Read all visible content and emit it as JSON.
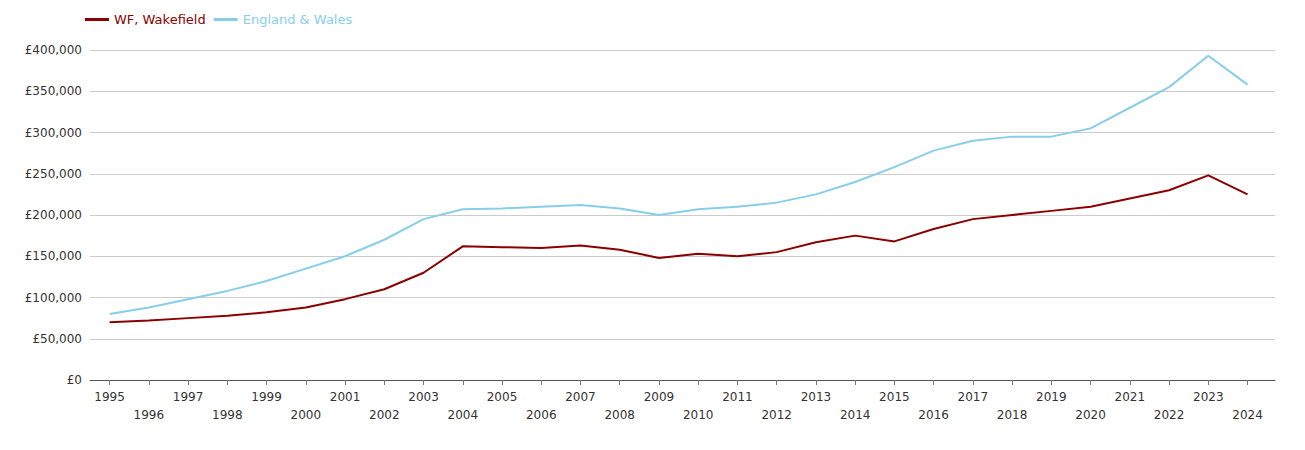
{
  "chart_data": {
    "type": "line",
    "x": [
      1995,
      1996,
      1997,
      1998,
      1999,
      2000,
      2001,
      2002,
      2003,
      2004,
      2005,
      2006,
      2007,
      2008,
      2009,
      2010,
      2011,
      2012,
      2013,
      2014,
      2015,
      2016,
      2017,
      2018,
      2019,
      2020,
      2021,
      2022,
      2023,
      2024
    ],
    "series": [
      {
        "name": "WF, Wakefield",
        "color": "#8b0000",
        "values": [
          70000,
          72000,
          75000,
          78000,
          82000,
          88000,
          98000,
          110000,
          130000,
          162000,
          161000,
          160000,
          163000,
          158000,
          148000,
          153000,
          150000,
          155000,
          167000,
          175000,
          168000,
          183000,
          195000,
          200000,
          205000,
          210000,
          220000,
          230000,
          248000,
          225000
        ]
      },
      {
        "name": "England & Wales",
        "color": "#87CEEB",
        "values": [
          80000,
          88000,
          98000,
          108000,
          120000,
          135000,
          150000,
          170000,
          195000,
          207000,
          208000,
          210000,
          212000,
          208000,
          200000,
          207000,
          210000,
          215000,
          225000,
          240000,
          258000,
          278000,
          290000,
          295000,
          295000,
          305000,
          330000,
          355000,
          393000,
          358000
        ]
      }
    ],
    "xlim": [
      1994.5,
      2024.7
    ],
    "xticks": [
      1995,
      1996,
      1997,
      1998,
      1999,
      2000,
      2001,
      2002,
      2003,
      2004,
      2005,
      2006,
      2007,
      2008,
      2009,
      2010,
      2011,
      2012,
      2013,
      2014,
      2015,
      2016,
      2017,
      2018,
      2019,
      2020,
      2021,
      2022,
      2023,
      2024
    ],
    "ylim": [
      0,
      400000
    ],
    "yticks": [
      {
        "value": 0,
        "label": "£0"
      },
      {
        "value": 50000,
        "label": "£50,000"
      },
      {
        "value": 100000,
        "label": "£100,000"
      },
      {
        "value": 150000,
        "label": "£150,000"
      },
      {
        "value": 200000,
        "label": "£200,000"
      },
      {
        "value": 250000,
        "label": "£250,000"
      },
      {
        "value": 300000,
        "label": "£300,000"
      },
      {
        "value": 350000,
        "label": "£350,000"
      },
      {
        "value": 400000,
        "label": "£400,000"
      }
    ],
    "grid": true,
    "legend": "upper left"
  }
}
